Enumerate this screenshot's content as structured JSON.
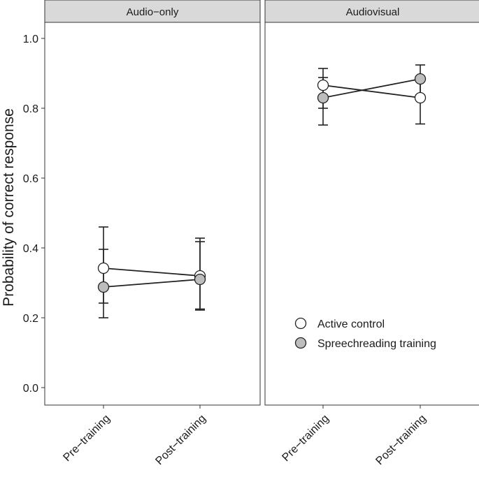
{
  "chart_data": {
    "type": "line",
    "ylabel": "Probability of correct response",
    "ylim": [
      0,
      1.05
    ],
    "yticks": [
      "0.0",
      "0.2",
      "0.4",
      "0.6",
      "0.8",
      "1.0"
    ],
    "ytick_values": [
      0,
      0.2,
      0.4,
      0.6,
      0.8,
      1.0
    ],
    "categories": [
      "Pre−training",
      "Post−training"
    ],
    "legend": {
      "placement": "bottom-right of right panel",
      "entries": [
        {
          "name": "Active control",
          "fill": "#ffffff"
        },
        {
          "name": "Spreechreading training",
          "fill": "#bdbdbd"
        }
      ]
    },
    "panels": [
      {
        "title": "Audio−only",
        "series": [
          {
            "name": "Active control",
            "values": [
              0.342,
              0.32
            ],
            "lower": [
              0.242,
              0.222
            ],
            "upper": [
              0.396,
              0.418
            ]
          },
          {
            "name": "Spreechreading training",
            "values": [
              0.288,
              0.31
            ],
            "lower": [
              0.2,
              0.225
            ],
            "upper": [
              0.46,
              0.428
            ]
          }
        ]
      },
      {
        "title": "Audiovisual",
        "series": [
          {
            "name": "Active control",
            "values": [
              0.866,
              0.83
            ],
            "lower": [
              0.8,
              0.755
            ],
            "upper": [
              0.914,
              0.886
            ]
          },
          {
            "name": "Spreechreading training",
            "values": [
              0.83,
              0.884
            ],
            "lower": [
              0.752,
              0.838
            ],
            "upper": [
              0.888,
              0.924
            ]
          }
        ]
      }
    ]
  }
}
